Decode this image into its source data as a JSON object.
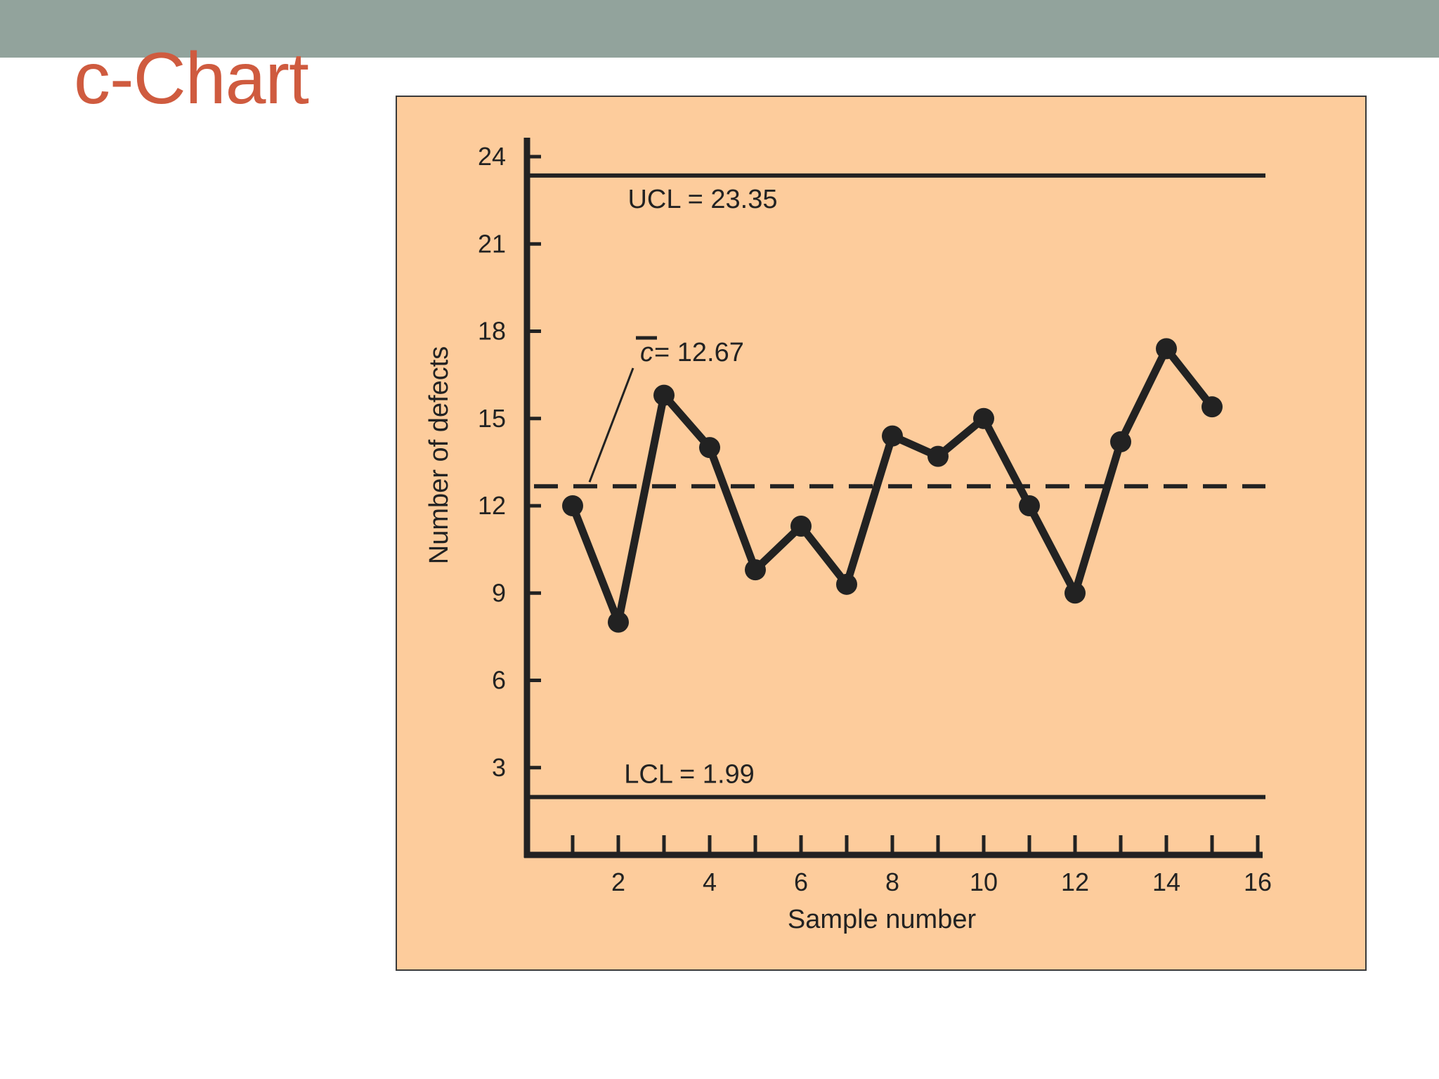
{
  "slide": {
    "title": "c-Chart"
  },
  "colors": {
    "header_bar": "#92a39c",
    "title": "#cf5b3f",
    "chart_background": "#fdcc9c",
    "ink": "#222222"
  },
  "chart_data": {
    "type": "line",
    "title": "",
    "xlabel": "Sample number",
    "ylabel": "Number of defects",
    "xlim": [
      0,
      16
    ],
    "ylim": [
      0,
      24
    ],
    "x_ticks": [
      1,
      2,
      3,
      4,
      5,
      6,
      7,
      8,
      9,
      10,
      11,
      12,
      13,
      14,
      15,
      16
    ],
    "x_tick_labels": [
      "",
      "2",
      "",
      "4",
      "",
      "6",
      "",
      "8",
      "",
      "10",
      "",
      "12",
      "",
      "14",
      "",
      "16"
    ],
    "y_ticks": [
      3,
      6,
      9,
      12,
      15,
      18,
      21,
      24
    ],
    "y_tick_labels": [
      "3",
      "6",
      "9",
      "12",
      "15",
      "18",
      "21",
      "24"
    ],
    "grid": false,
    "legend": "none",
    "series": [
      {
        "x": [
          1,
          2,
          3,
          4,
          5,
          6,
          7,
          8,
          9,
          10,
          11,
          12,
          13,
          14,
          15
        ],
        "values": [
          12,
          8,
          15.8,
          14,
          9.8,
          11.3,
          9.3,
          14.4,
          13.7,
          15,
          12,
          9,
          14.2,
          17.4,
          15.4
        ]
      }
    ],
    "reference_lines": [
      {
        "name": "UCL",
        "value": 23.35,
        "label": "UCL = 23.35",
        "style": "solid"
      },
      {
        "name": "c-bar",
        "value": 12.67,
        "label_symbol": "c",
        "label_rest": " = 12.67",
        "style": "dashed"
      },
      {
        "name": "LCL",
        "value": 1.99,
        "label": "LCL = 1.99",
        "style": "solid"
      }
    ]
  }
}
